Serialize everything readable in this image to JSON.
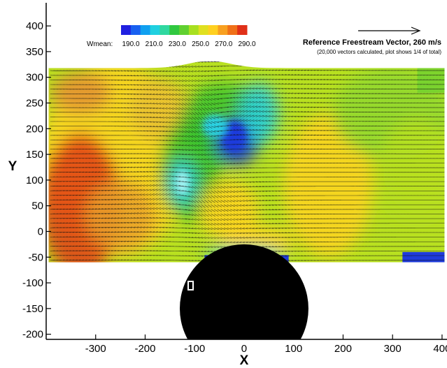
{
  "chart_data": {
    "type": "vector-contour",
    "xlabel": "X",
    "ylabel": "Y",
    "xlim": [
      -400,
      410
    ],
    "ylim": [
      -210,
      445
    ],
    "x_ticks": [
      -300,
      -200,
      -100,
      0,
      100,
      200,
      300,
      400
    ],
    "y_ticks": [
      400,
      350,
      300,
      250,
      200,
      150,
      100,
      50,
      0,
      -50,
      -100,
      -150,
      -200
    ],
    "legend": {
      "label": "Wmean:",
      "levels": [
        "190.0",
        "210.0",
        "230.0",
        "250.0",
        "270.0",
        "290.0"
      ],
      "placement": "top-left"
    },
    "reference_vector": {
      "title": "Reference Freestream Vector, 260 m/s",
      "note": "(20,000 vectors calculated, plot shows 1/4 of total)",
      "magnitude_ms": 260,
      "placement": "top-right"
    },
    "field_extent": {
      "x": [
        -395,
        405
      ],
      "y": [
        -60,
        318
      ]
    },
    "cylinder": {
      "center_x": 0,
      "center_y": -150,
      "radius": 130
    },
    "colors": {
      "low": "#1f3bdc",
      "mid_low": "#2ad0e0",
      "mid": "#38c22e",
      "mid_high": "#b8e020",
      "high": "#ffd420",
      "max": "#e04018"
    }
  }
}
